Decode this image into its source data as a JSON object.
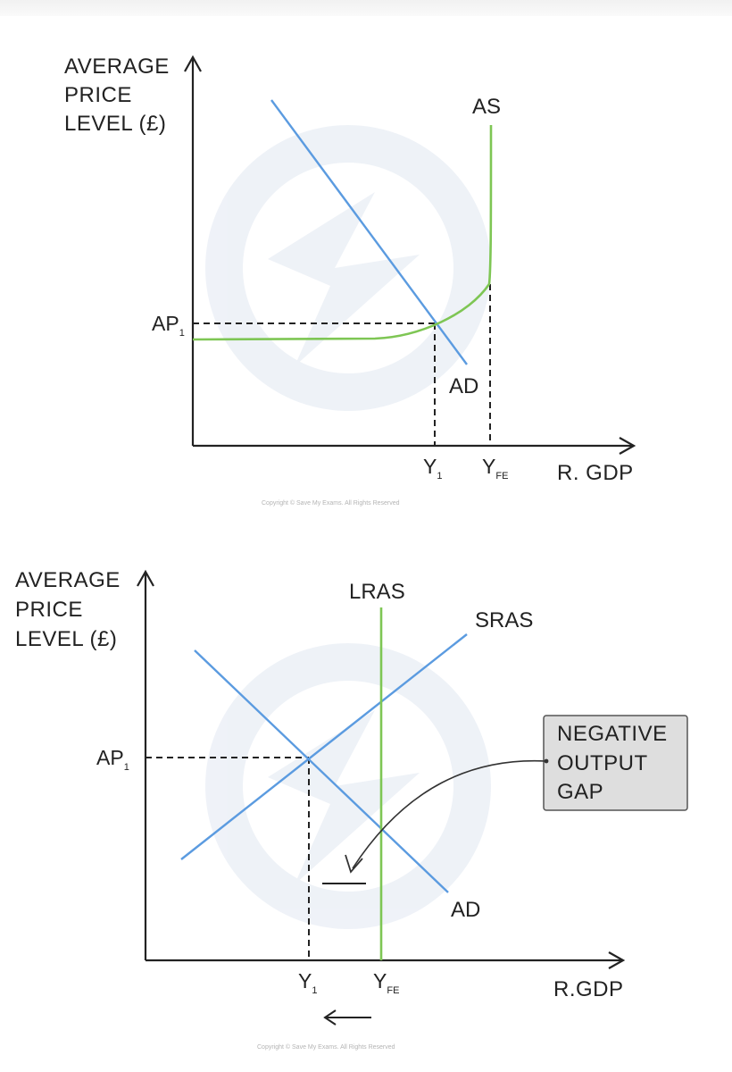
{
  "colors": {
    "ad_curve": "#5b9be0",
    "sras_curve": "#5b9be0",
    "as_curve": "#7ec654",
    "lras_curve": "#7ec654",
    "callout_fill": "#dedede",
    "axis": "#222222"
  },
  "diagram1": {
    "y_axis_label": [
      "AVERAGE",
      "PRICE",
      "LEVEL (£)"
    ],
    "x_axis_label": "R. GDP",
    "price_label": "AP",
    "price_label_sub": "1",
    "y1_label": "Y",
    "y1_label_sub": "1",
    "yfe_label": "Y",
    "yfe_label_sub": "FE",
    "as_label": "AS",
    "ad_label": "AD",
    "copyright": "Copyright © Save My Exams. All Rights Reserved"
  },
  "diagram2": {
    "y_axis_label": [
      "AVERAGE",
      "PRICE",
      "LEVEL (£)"
    ],
    "x_axis_label": "R.GDP",
    "price_label": "AP",
    "price_label_sub": "1",
    "y1_label": "Y",
    "y1_label_sub": "1",
    "yfe_label": "Y",
    "yfe_label_sub": "FE",
    "lras_label": "LRAS",
    "sras_label": "SRAS",
    "ad_label": "AD",
    "callout_lines": [
      "NEGATIVE",
      "OUTPUT",
      "GAP"
    ],
    "copyright": "Copyright © Save My Exams. All Rights Reserved"
  }
}
